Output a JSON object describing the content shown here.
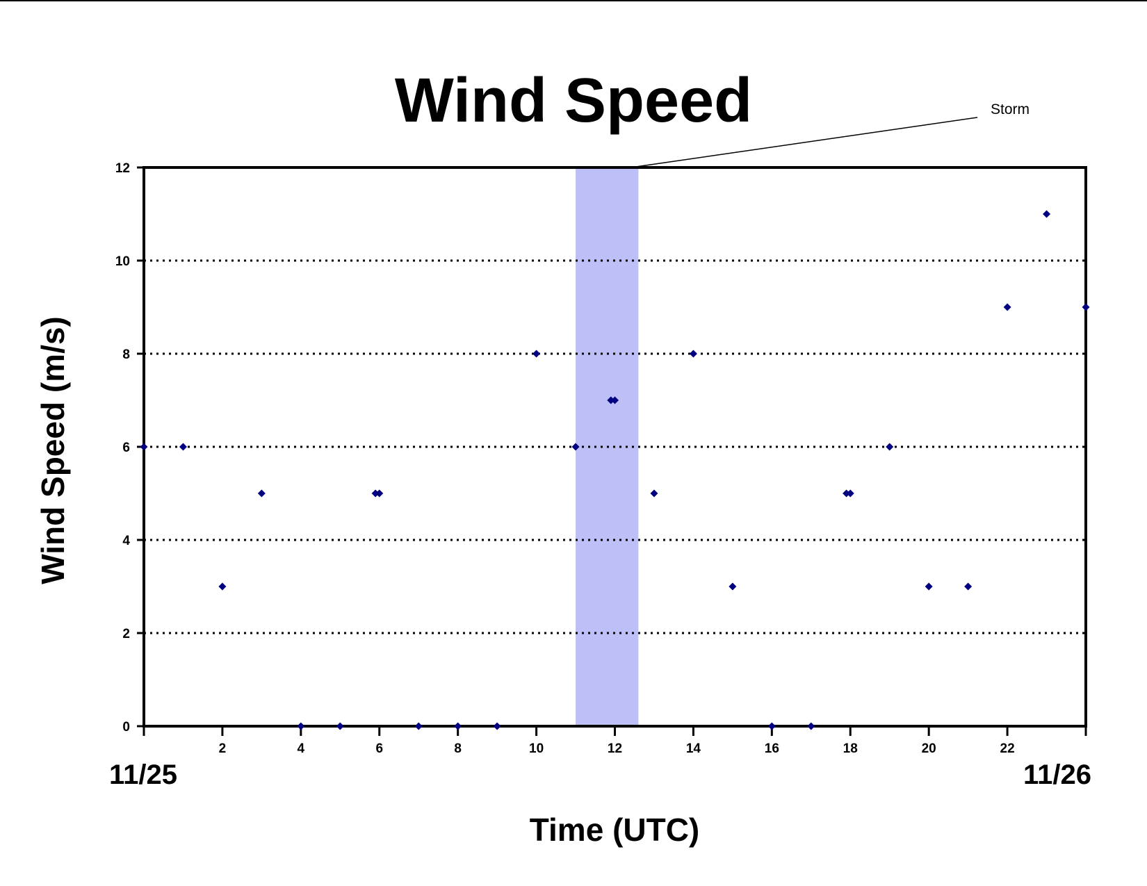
{
  "chart_data": {
    "type": "scatter",
    "title": "Wind Speed",
    "xlabel": "Time (UTC)",
    "ylabel": "Wind Speed (m/s)",
    "xlim": [
      0,
      24
    ],
    "ylim": [
      0,
      12
    ],
    "x_ticks": [
      0,
      2,
      4,
      6,
      8,
      10,
      12,
      14,
      16,
      18,
      20,
      22,
      24
    ],
    "x_tick_labels": [
      "",
      "2",
      "4",
      "6",
      "8",
      "10",
      "12",
      "14",
      "16",
      "18",
      "20",
      "22",
      ""
    ],
    "y_ticks": [
      0,
      2,
      4,
      6,
      8,
      10,
      12
    ],
    "y_tick_labels": [
      "0",
      "2",
      "4",
      "6",
      "8",
      "10",
      "12"
    ],
    "date_labels": {
      "start": "11/25",
      "end": "11/26"
    },
    "grid": "horizontal dotted",
    "marker": "diamond",
    "series": [
      {
        "color": "#000080",
        "points": [
          {
            "x": 0,
            "y": 6
          },
          {
            "x": 1,
            "y": 6
          },
          {
            "x": 2,
            "y": 3
          },
          {
            "x": 3,
            "y": 5
          },
          {
            "x": 4,
            "y": 0
          },
          {
            "x": 5,
            "y": 0
          },
          {
            "x": 5.9,
            "y": 5
          },
          {
            "x": 6,
            "y": 5
          },
          {
            "x": 7,
            "y": 0
          },
          {
            "x": 8,
            "y": 0
          },
          {
            "x": 9,
            "y": 0
          },
          {
            "x": 10,
            "y": 8
          },
          {
            "x": 11,
            "y": 6
          },
          {
            "x": 11.9,
            "y": 7
          },
          {
            "x": 12,
            "y": 7
          },
          {
            "x": 13,
            "y": 5
          },
          {
            "x": 14,
            "y": 8
          },
          {
            "x": 15,
            "y": 3
          },
          {
            "x": 16,
            "y": 0
          },
          {
            "x": 17,
            "y": 0
          },
          {
            "x": 17.9,
            "y": 5
          },
          {
            "x": 18,
            "y": 5
          },
          {
            "x": 19,
            "y": 6
          },
          {
            "x": 20,
            "y": 3
          },
          {
            "x": 21,
            "y": 3
          },
          {
            "x": 22,
            "y": 9
          },
          {
            "x": 23,
            "y": 11
          },
          {
            "x": 24,
            "y": 9
          }
        ]
      }
    ],
    "annotations": [
      {
        "text": "Storm",
        "x_start": 11,
        "x_end": 12.6,
        "color": "#bfbff7"
      }
    ]
  }
}
